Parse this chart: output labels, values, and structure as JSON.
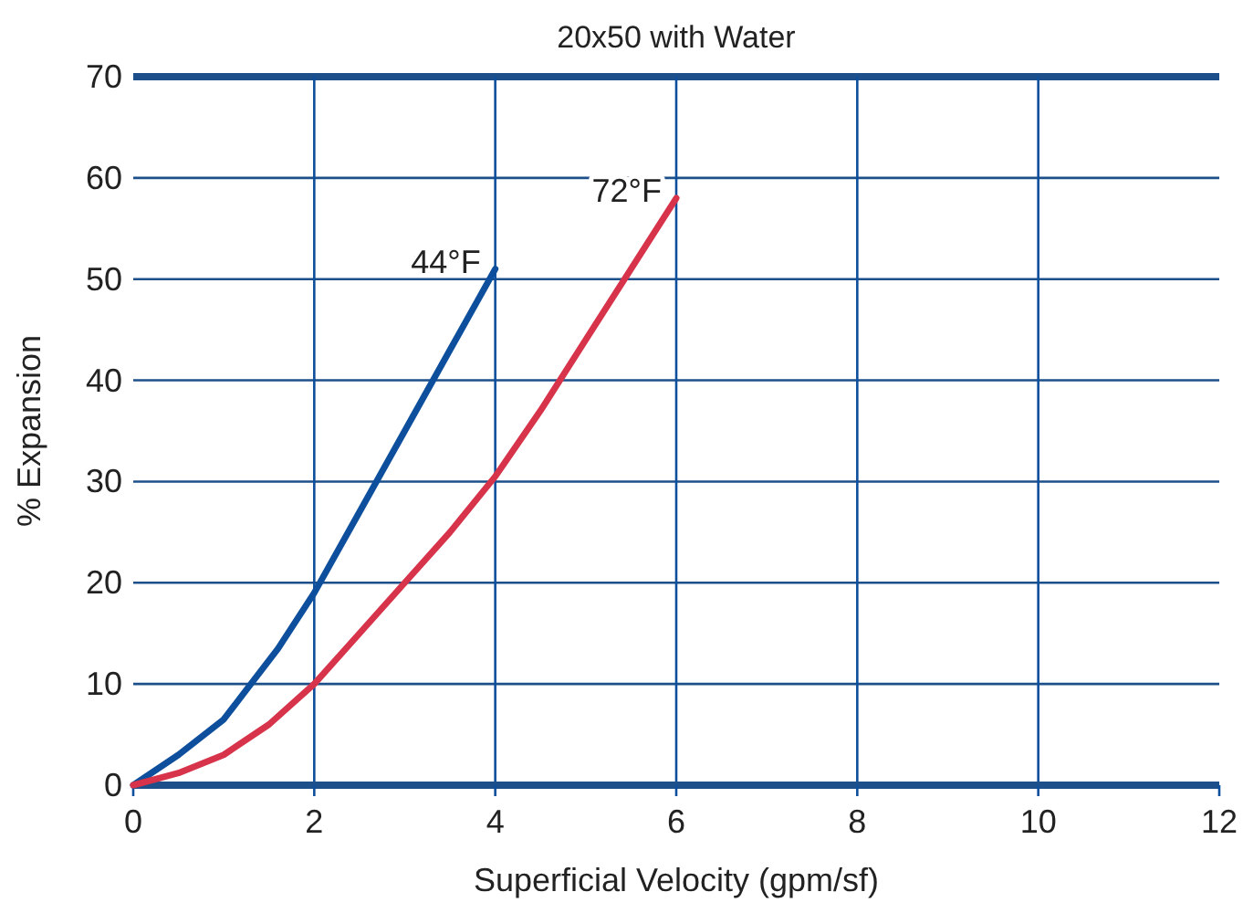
{
  "chart_data": {
    "type": "line",
    "title": "20x50 with Water",
    "xlabel": "Superficial Velocity (gpm/sf)",
    "ylabel": "% Expansion",
    "xlim": [
      0,
      12
    ],
    "ylim": [
      0,
      70
    ],
    "xticks": [
      0,
      2,
      4,
      6,
      8,
      10,
      12
    ],
    "yticks": [
      0,
      10,
      20,
      30,
      40,
      50,
      60,
      70
    ],
    "grid": true,
    "marker": "none",
    "line_style": "solid",
    "series": [
      {
        "name": "44°F",
        "color": "#0d4f9c",
        "x": [
          0,
          0.5,
          1,
          1.3,
          1.6,
          2,
          2.5,
          3,
          3.5,
          4
        ],
        "values": [
          0,
          3,
          6.5,
          10,
          13.5,
          19,
          27,
          35,
          43,
          51
        ]
      },
      {
        "name": "72°F",
        "color": "#d7334a",
        "x": [
          0,
          0.5,
          1,
          1.5,
          2,
          2.5,
          3,
          3.5,
          4,
          4.5,
          5,
          5.5,
          6
        ],
        "values": [
          0,
          1.2,
          3,
          6,
          10,
          15,
          20,
          25,
          30.5,
          37,
          44,
          51,
          58
        ]
      }
    ]
  }
}
